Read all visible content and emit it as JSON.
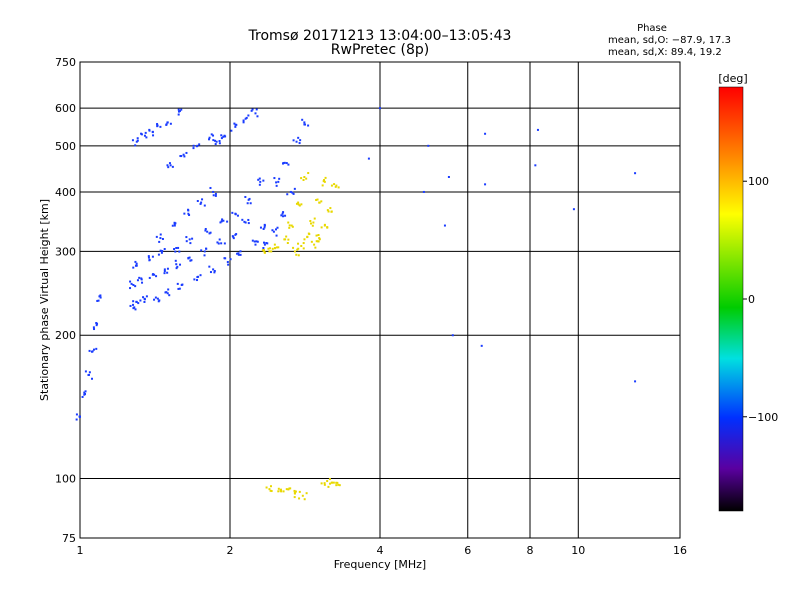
{
  "chart_data": {
    "type": "scatter",
    "title": "Tromsø 20171213 13:04:00–13:05:43",
    "subtitle": "RwPretec (8p)",
    "xlabel": "Frequency [MHz]",
    "ylabel": "Stationary phase Virtual Height [km]",
    "xscale": "log",
    "yscale": "log",
    "xlim": [
      1,
      16
    ],
    "ylim": [
      75,
      750
    ],
    "x_ticks": [
      "1",
      "2",
      "4",
      "6",
      "8",
      "10",
      "16"
    ],
    "x_tick_values": [
      1,
      2,
      4,
      6,
      8,
      10,
      16
    ],
    "y_ticks": [
      "75",
      "100",
      "200",
      "300",
      "400",
      "500",
      "600",
      "750"
    ],
    "y_tick_values": [
      75,
      100,
      200,
      300,
      400,
      500,
      600,
      750
    ],
    "grid": true,
    "stats": {
      "heading": "Phase",
      "line_o": "mean, sd,O: −87.9, 17.3",
      "line_x": "mean, sd,X:  89.4, 19.2"
    },
    "colorbar": {
      "label": "[deg]",
      "range": [
        -180,
        180
      ],
      "tick_labels": [
        "100",
        "0",
        "−100"
      ],
      "tick_values": [
        100,
        0,
        -100
      ]
    },
    "series": [
      {
        "mode": "O",
        "color": "#1a3cff",
        "traces": [
          {
            "x": [
              1.0,
              1.02,
              1.04,
              1.06,
              1.08,
              1.1
            ],
            "y": [
              135,
              150,
              165,
              185,
              210,
              240
            ]
          },
          {
            "x": [
              1.28,
              1.3,
              1.35,
              1.42,
              1.5,
              1.6,
              1.72,
              1.85,
              1.98,
              2.1,
              2.25,
              2.35
            ],
            "y": [
              228,
              235,
              238,
              240,
              245,
              255,
              265,
              275,
              285,
              295,
              310,
              340
            ]
          },
          {
            "x": [
              1.28,
              1.33,
              1.4,
              1.48,
              1.56,
              1.65,
              1.78,
              1.92,
              2.05,
              2.15
            ],
            "y": [
              255,
              262,
              268,
              275,
              282,
              290,
              300,
              312,
              325,
              345
            ]
          },
          {
            "x": [
              1.3,
              1.38,
              1.46,
              1.56,
              1.66,
              1.8,
              1.94,
              2.05,
              2.18,
              2.3
            ],
            "y": [
              280,
              288,
              298,
              305,
              318,
              330,
              348,
              360,
              385,
              420
            ]
          },
          {
            "x": [
              1.45,
              1.55,
              1.65,
              1.75,
              1.85
            ],
            "y": [
              320,
              340,
              360,
              380,
              400
            ]
          },
          {
            "x": [
              1.3,
              1.35,
              1.4,
              1.45,
              1.5,
              1.58
            ],
            "y": [
              510,
              525,
              535,
              548,
              560,
              590
            ]
          },
          {
            "x": [
              1.52,
              1.62,
              1.72,
              1.82
            ],
            "y": [
              455,
              475,
              500,
              520
            ]
          },
          {
            "x": [
              1.88,
              1.95,
              2.05,
              2.15,
              2.25
            ],
            "y": [
              510,
              525,
              548,
              570,
              585
            ]
          },
          {
            "x": [
              2.5,
              2.6,
              2.72,
              2.82
            ],
            "y": [
              420,
              460,
              510,
              560
            ]
          },
          {
            "x": [
              2.35,
              2.45,
              2.55,
              2.65
            ],
            "y": [
              310,
              330,
              360,
              400
            ]
          }
        ]
      },
      {
        "mode": "X",
        "color": "#e8d800",
        "traces": [
          {
            "x": [
              2.35,
              2.42,
              2.5,
              2.58,
              2.66,
              2.74,
              2.82
            ],
            "y": [
              298,
              300,
              306,
              318,
              340,
              380,
              430
            ]
          },
          {
            "x": [
              2.7,
              2.78,
              2.86,
              2.94,
              3.02,
              3.1
            ],
            "y": [
              300,
              308,
              322,
              345,
              380,
              420
            ]
          },
          {
            "x": [
              2.95,
              3.02,
              3.1,
              3.18,
              3.26
            ],
            "y": [
              310,
              320,
              340,
              370,
              410
            ]
          },
          {
            "x": [
              2.4,
              2.5,
              2.6,
              2.7,
              2.8,
              3.1,
              3.2,
              3.3
            ],
            "y": [
              95,
              94,
              95,
              93,
              92,
              97,
              98,
              97
            ]
          }
        ]
      },
      {
        "mode": "noise",
        "color": "#1a3cff",
        "traces": [
          {
            "x": [
              3.8,
              4.0,
              4.9,
              5.0,
              5.4,
              5.5,
              5.6,
              6.4,
              6.5,
              6.5,
              8.2,
              8.3,
              9.8,
              13.0,
              13.0
            ],
            "y": [
              470,
              600,
              400,
              500,
              340,
              430,
              200,
              190,
              415,
              530,
              455,
              540,
              368,
              438,
              160
            ]
          }
        ]
      }
    ]
  }
}
